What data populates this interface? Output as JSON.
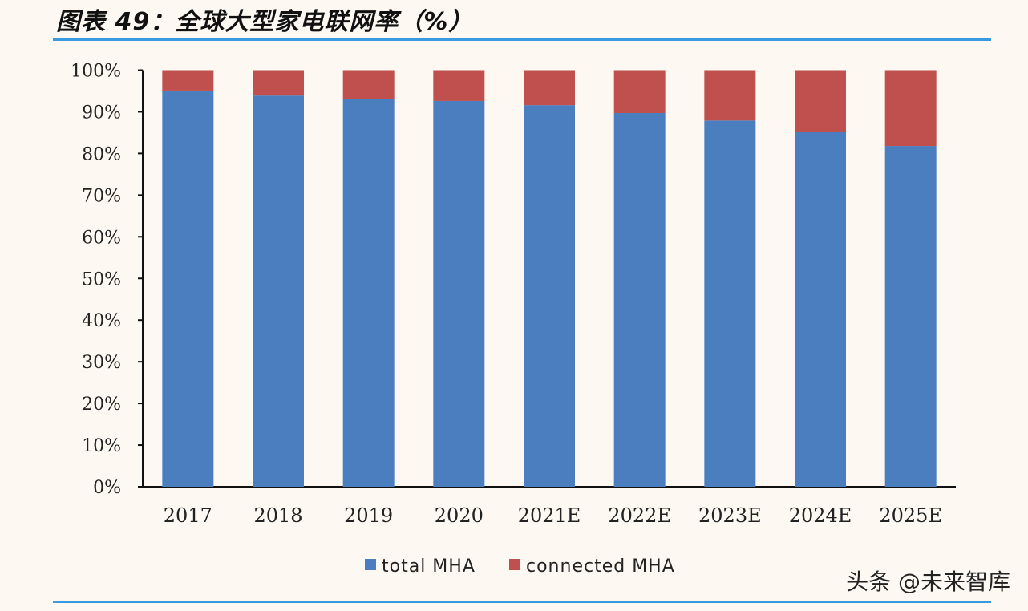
{
  "title": "图表 49：全球大型家电联网率（%）",
  "watermark": "头条 @未来智库",
  "colors": {
    "total": "#4a7ebf",
    "connected": "#c0504d",
    "rule": "#3a9ae0"
  },
  "chart_data": {
    "type": "bar",
    "stacked": true,
    "categories": [
      "2017",
      "2018",
      "2019",
      "2020",
      "2021E",
      "2022E",
      "2023E",
      "2024E",
      "2025E"
    ],
    "series": [
      {
        "name": "total MHA",
        "values": [
          95.1,
          93.9,
          93.0,
          92.6,
          91.6,
          89.7,
          87.9,
          85.1,
          81.8
        ]
      },
      {
        "name": "connected MHA",
        "values": [
          4.9,
          6.1,
          7.0,
          7.4,
          8.4,
          10.3,
          12.1,
          14.9,
          18.2
        ]
      }
    ],
    "ylim": [
      0,
      100
    ],
    "yticks": [
      "0%",
      "10%",
      "20%",
      "30%",
      "40%",
      "50%",
      "60%",
      "70%",
      "80%",
      "90%",
      "100%"
    ],
    "grid": false,
    "legend": "bottom"
  }
}
